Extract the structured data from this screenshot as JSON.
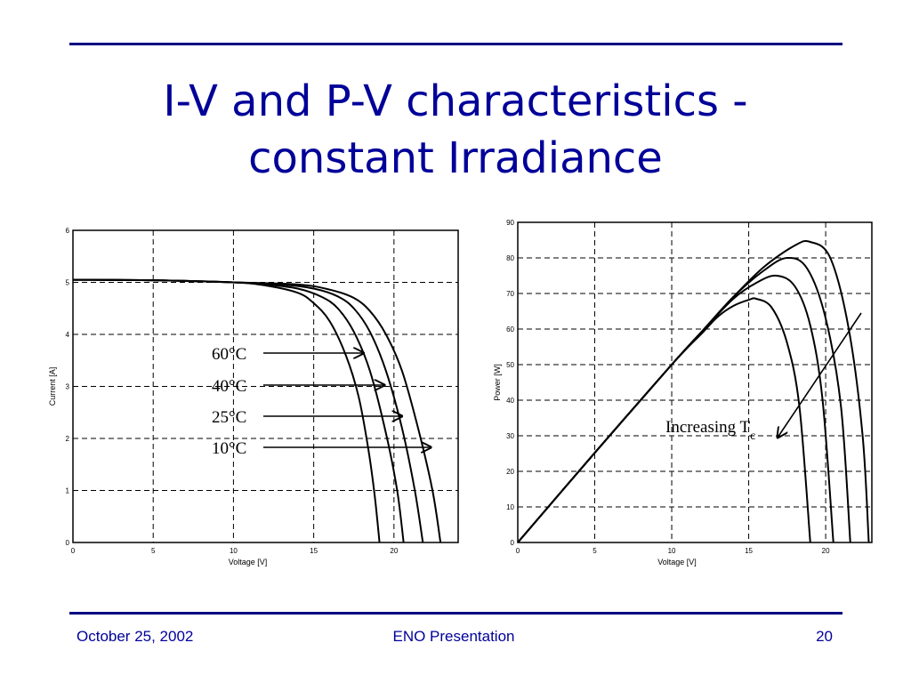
{
  "slide": {
    "title": "I-V and P-V characteristics - constant Irradiance",
    "title_lines": [
      "I-V and P-V characteristics -",
      "constant Irradiance"
    ],
    "accent_color": "#000099"
  },
  "footer": {
    "date": "October 25, 2002",
    "presentation": "ENO Presentation",
    "page_number": "20"
  },
  "chart_data": [
    {
      "type": "line",
      "title": "",
      "xlabel": "Voltage [V]",
      "ylabel": "Current [A]",
      "xlim": [
        0,
        24
      ],
      "ylim": [
        0,
        6
      ],
      "xticks": [
        0,
        5,
        10,
        15,
        20
      ],
      "yticks": [
        0,
        1,
        2,
        3,
        4,
        5,
        6
      ],
      "grid": true,
      "series": [
        {
          "name": "60°C",
          "x": [
            0,
            5,
            10,
            12,
            14,
            15,
            16,
            17,
            17.8,
            18.4,
            18.8,
            19.1
          ],
          "y": [
            5.05,
            5.04,
            5.0,
            4.94,
            4.8,
            4.6,
            4.25,
            3.6,
            2.8,
            1.8,
            0.9,
            0
          ]
        },
        {
          "name": "40°C",
          "x": [
            0,
            5,
            10,
            12,
            14,
            15.5,
            16.5,
            17.5,
            18.5,
            19.5,
            20.2,
            20.6
          ],
          "y": [
            5.05,
            5.04,
            5.0,
            4.96,
            4.88,
            4.72,
            4.5,
            4.05,
            3.3,
            2.1,
            1.0,
            0
          ]
        },
        {
          "name": "25°C",
          "x": [
            0,
            5,
            10,
            13,
            15,
            16.5,
            17.5,
            18.5,
            19.5,
            20.5,
            21.3,
            21.8
          ],
          "y": [
            5.05,
            5.04,
            5.0,
            4.96,
            4.88,
            4.73,
            4.5,
            4.05,
            3.3,
            2.2,
            1.0,
            0
          ]
        },
        {
          "name": "10°C",
          "x": [
            0,
            5,
            10,
            14,
            16,
            17.5,
            18.5,
            19.5,
            20.5,
            21.5,
            22.4,
            22.9
          ],
          "y": [
            5.05,
            5.04,
            5.0,
            4.96,
            4.86,
            4.7,
            4.45,
            4.0,
            3.3,
            2.2,
            1.0,
            0
          ]
        }
      ],
      "annotations": [
        "60°C",
        "40°C",
        "25°C",
        "10°C"
      ]
    },
    {
      "type": "line",
      "title": "",
      "xlabel": "Voltage [V]",
      "ylabel": "Power [W]",
      "xlim": [
        0,
        23
      ],
      "ylim": [
        0,
        90
      ],
      "xticks": [
        0,
        5,
        10,
        15,
        20
      ],
      "yticks": [
        0,
        10,
        20,
        30,
        40,
        50,
        60,
        70,
        80,
        90
      ],
      "grid": true,
      "series": [
        {
          "name": "",
          "x": [
            0,
            5,
            10,
            12,
            13,
            14,
            15,
            15.5,
            16.5,
            17.5,
            18.3,
            19.0
          ],
          "y": [
            0,
            25.2,
            50,
            59,
            63.5,
            66.5,
            68.2,
            68.5,
            66,
            56,
            38,
            0
          ]
        },
        {
          "name": "",
          "x": [
            0,
            5,
            10,
            12,
            14,
            15.5,
            16.8,
            18,
            19,
            19.8,
            20.5
          ],
          "y": [
            0,
            25.2,
            50,
            59.5,
            68.5,
            73,
            75,
            72,
            61,
            40,
            0
          ]
        },
        {
          "name": "",
          "x": [
            0,
            5,
            10,
            12,
            14,
            16,
            17.5,
            18.8,
            20,
            21,
            21.6
          ],
          "y": [
            0,
            25.2,
            50,
            59.5,
            69,
            76.5,
            80,
            77,
            63,
            38,
            0
          ]
        },
        {
          "name": "",
          "x": [
            0,
            5,
            10,
            12,
            14,
            16,
            18,
            19,
            20.3,
            21.5,
            22.4,
            22.8
          ],
          "y": [
            0,
            25.2,
            50,
            59.5,
            69,
            77.5,
            83.5,
            84.5,
            80,
            60,
            30,
            0
          ]
        }
      ],
      "annotation": {
        "text": "Increasing T",
        "subscript": "c"
      }
    }
  ]
}
